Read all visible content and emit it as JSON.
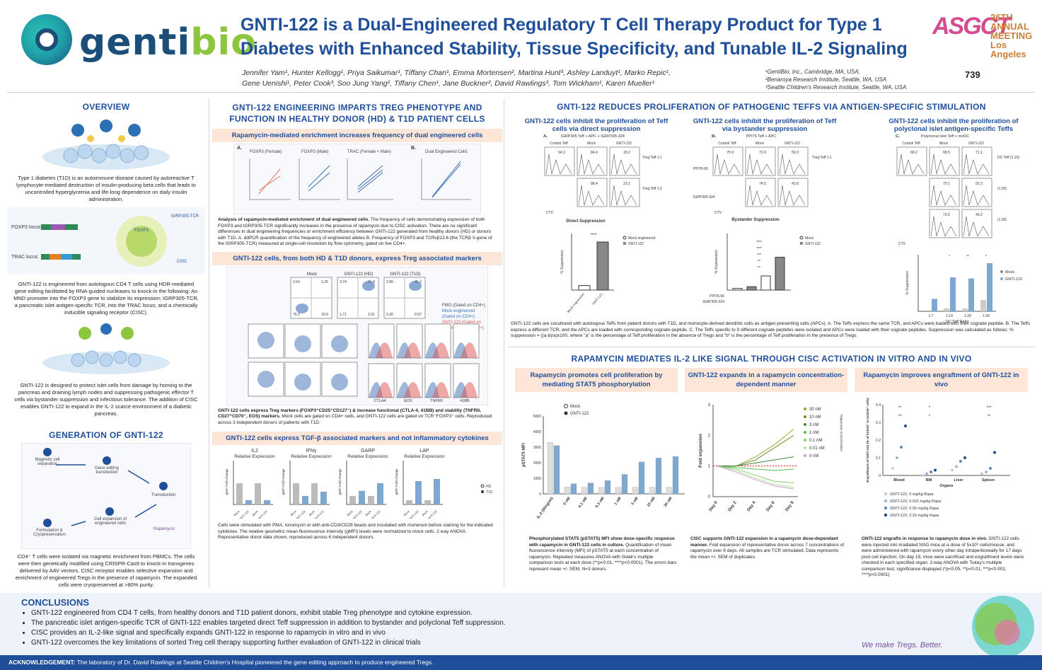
{
  "header": {
    "logo_text_g": "genti",
    "logo_text_b": "bio",
    "title_line1": "GNTI-122 is a Dual-Engineered Regulatory T Cell Therapy Product for Type 1",
    "title_line2": "Diabetes with Enhanced Stability, Tissue Specificity, and Tunable IL-2 Signaling",
    "authors_line1": "Jennifer Yam¹, Hunter Kellogg¹, Priya Saikumar¹, Tiffany Chan¹, Emma Mortensen², Martina Hunt³, Ashley Landuyt¹, Marko Repic¹,",
    "authors_line2": "Gene Uenishi¹, Peter Cook³, Soo Jung Yang², Tiffany Chen¹, Jane Buckner², David Rawlings³, Tom Wickham¹, Karen Mueller¹",
    "affil_1": "¹GentiBio, Inc., Cambridge, MA, USA,",
    "affil_2": "²Benaroya Research Institute, Seattle, WA, USA",
    "affil_3": "³Seattle Children's Research Institute, Seattle, WA, USA",
    "meeting_logo": "ASGCT",
    "meeting_text": "26TH ANNUAL MEETING Los Angeles",
    "poster_number": "739"
  },
  "overview": {
    "title": "OVERVIEW",
    "p1": "Type 1 diabetes (T1D) is an autoimmune disease caused by autoreactive T lymphocyte-mediated destruction of insulin-producing beta cells that leads to uncontrolled hyperglycemia and life-long dependence on daily insulin administration.",
    "p2": "GNTI-122 is engineered from autologous CD4 T cells using HDR-mediated gene editing facilitated by RNA-guided nucleases to knock-in the following: An MND promoter into the FOXP3 gene to stabilize its expression; IGRP305-TCR, a pancreatic islet antigen-specific TCR, into the TRAC locus; and a chemically inducible signaling receptor (CISC).",
    "p3": "GNTI-122 is designed to protect islet cells from damage by homing to the pancreas and draining lymph nodes and suppressing pathogenic effector T cells via bystander suppression and infectious tolerance. The addition of CISC enables GNTI-122 to expand in the IL-2 scarce environment of a diabetic pancreas.",
    "foxp3_locus": "FOXP3 locus",
    "trac_locus": "TRAC locus",
    "foxp3": "FOXP3",
    "igrp_tcr": "IGRP305-TCR",
    "cisc": "CISC"
  },
  "generation": {
    "title": "GENERATION OF GNTI-122",
    "steps": [
      "Magnetic cell separation",
      "Gene editing transfection",
      "Transduction",
      "Cell expansion of engineered cells",
      "Formulation & Cryopreservation"
    ],
    "rapamycin": "Rapamycin",
    "text": "CD4⁺ T cells were isolated via magnetic enrichment from PBMCs. The cells were then genetically modified using CRISPR-Cas9 to knock-in transgenes delivered by AAV vectors. CISC receptor enables selective expansion and enrichment of engineered Tregs in the presence of rapamycin. The expanded cells were cryopreserved at >80% purity."
  },
  "engineering": {
    "title_l1": "GNTI-122 ENGINEERING IMPARTS TREG PHENOTYPE AND",
    "title_l2": "FUNCTION IN HEALTHY DONOR (HD) & T1D PATIENT CELLS",
    "sub1": "Rapamycin-mediated enrichment increases frequency of dual engineered cells",
    "panelA": "A.",
    "panelB": "B.",
    "plot_titles": [
      "FOXP3 (Female)",
      "FOXP3 (Male)",
      "TRAC (Female + Male)",
      "Dual Engineered Cells"
    ],
    "cap1_bold": "Analysis of rapamycin-mediated enrichment of dual engineered cells.",
    "cap1": " The frequency of cells demonstrating expression of both FOXP3 and IGRP305-TCR significantly increases in the presence of rapamycin due to CISC activation. There are no significant differences in dual engineering frequencies or enrichment efficiency between GNTI-122 generated from healthy donors (HD) or donors with T1D. A. ddPCR quantification of the frequency of engineered alleles B. Frequency of FOXP3 and TCRvβ13.6 (the TCRβ V-gene of the IGRP305-TCR) measured at single-cell resolution by flow cytometry, gated on live CD4+.",
    "sub2": "GNTI-122 cells, from both HD & T1D donors, express Treg associated markers",
    "flow_labels": [
      "Mock",
      "GNTI-122 (HD)",
      "GNTI-122 (T1D)"
    ],
    "flow_q": [
      [
        "2.64",
        "1.25",
        "76.2",
        "19.9"
      ],
      [
        "3.74",
        "91.9",
        "1.71",
        "2.61"
      ],
      [
        "2.86",
        "95.2",
        "0.30",
        "0.97"
      ]
    ],
    "legend_flow": [
      "FMO (Gated on CD4+)",
      "Mock engineered (Gated on CD4+)",
      "GNTI-122 (Gated on TCRvb13.6+FOXP3+)"
    ],
    "markers": [
      "CTLA4",
      "EOS",
      "TNFRII",
      "41BB"
    ],
    "cap2_bold": "GNTI-122 cells express Treg markers (FOXP3⁺CD25⁺CD127⁻) & increase functional (CTLA-4, 41BB) and stability (TNFRII, CD27⁺CD70⁻, EOS) markers.",
    "cap2": " Mock cells are gated on CD4+ cells, and GNTI-122 cells are gated on TCR⁺FOXP3⁺ cells. Reproduced across 3 independent donors of patients with T1D.",
    "sub3": "GNTI-122 cells express TGF-β associated markers and not inflammatory cytokines",
    "cyto_titles": [
      "IL2",
      "IFNγ",
      "GARP",
      "LAP"
    ],
    "cyto_sub": "Relative Expression",
    "cyto_y": "gMFI Fold Change",
    "cyto_x": [
      "Mock",
      "GNTI-122",
      "Mock",
      "GNTI-122"
    ],
    "legend_hd": "HD",
    "legend_t1d": "T1D",
    "cap3": "Cells were stimulated with PMA, ionomycin or with anti-CD3/CD28 beads and incubated with monensin before staining for the indicated cytokines. The relative geometric mean fluorescence intensity (gMFI) levels were normalized to mock cells. 2-way ANOVA. Representative donor data shown, reproduced across 6 independent donors."
  },
  "teffs": {
    "title": "GNTI-122 REDUCES PROLIFERATION OF PATHOGENIC TEFFS VIA ANTIGEN-SPECIFIC STIMULATION",
    "sub1": "GNTI-122 cells inhibit the proliferation of Teff cells via direct suppression",
    "sub2": "GNTI-122 cells inhibit the proliferation of Teff via bystander suppression",
    "sub3": "GNTI-122 cells inhibit the proliferation of polyclonal islet antigen-specific Teffs",
    "pA": "A.",
    "pA_t": "IGRP305 Teff + APC + IGRP305-324",
    "pB": "B.",
    "pB_t": "PPI76 Teff + APC",
    "pC": "C.",
    "pC_t": "Polyclonal islet Teff + moDC",
    "cols": [
      "Control Teff",
      "Mock",
      "GNTI-122"
    ],
    "ratio1": "Treg:Teff 1:1",
    "ratio2": "Treg:Teff 1:2",
    "ratios_c": [
      "DC:Teff (1:10)",
      "(1:20)",
      "(1:30)"
    ],
    "ctv": "CTV",
    "direct_title": "Direct Suppression",
    "bystander_title": "Bystander Suppression",
    "y_supp": "% Suppression",
    "direct_x": [
      "Mock engineered",
      "GNTI-122"
    ],
    "legend_mock_eng": "Mock engineered",
    "legend_gnti": "GNTI-122",
    "legend_mock": "Mock",
    "sig4": "****",
    "sig2": "**",
    "sig3": "***",
    "sig1": "*",
    "ppi": "PPI76-90",
    "igrp": "IGRP305-324",
    "ratio_x_title": "DC:Teff Ratio",
    "ratio_x": [
      "1:7",
      "1:10",
      "1:20",
      "1:30"
    ],
    "flowA": [
      [
        "94.3",
        "84.6",
        "18.2"
      ],
      [
        "",
        "88.4",
        "23.1"
      ]
    ],
    "flowB": [
      [
        "75.9",
        "73.9",
        "59.3"
      ],
      [
        "",
        "74.5",
        "41.8"
      ]
    ],
    "flowC": [
      [
        "68.2",
        "68.5",
        "71.1"
      ],
      [
        "",
        "70.1",
        "52.3"
      ],
      [
        "",
        "73.6",
        "43.2"
      ]
    ],
    "caption": "GNTI-122 cells are cocultured with autologous Teffs from patient donors with T1D, and monocyte-derived dendritic cells as antigen-presenting cells (APCs). A. The Teffs express the same TCR, and APCs were loaded with their cognate peptide. B. The Teffs express a different TCR, and the APCs are loaded with corresponding cognate peptide. C. The Teffs specific to 9 different cognate peptides were isolated and APCs were loaded with their cognate peptides. Suppression was calculated as follows: % suppression = ((a-b)/a)x100, where \"a\" is the percentage of Teff proliferation in the absence of Tregs and \"b\" is the percentage of Teff proliferation in the presence of Tregs."
  },
  "rapa": {
    "title": "RAPAMYCIN MEDIATES IL-2 LIKE SIGNAL THROUGH CISC ACTIVATION IN VITRO AND IN VIVO",
    "sub1": "Rapamycin promotes cell proliferation by mediating STAT5 phosphorylation",
    "sub2": "GNTI-122 expands in a rapamycin concentration-dependent manner",
    "sub3": "Rapamycin improves engraftment of GNTI-122 in vivo",
    "stat_y": "pSTAT5 MFI",
    "stat_x": [
      "IL-2 (50ng/ml)",
      "0 nM",
      "0.1 nM",
      "0.3 nM",
      "1 nM",
      "3 nM",
      "10 nM",
      "30 nM"
    ],
    "fold_y": "Fold expansion",
    "fold_x": [
      "Day 0",
      "Day 2",
      "Day 4",
      "Day 6",
      "Day 8"
    ],
    "fold_legend": [
      "30 nM",
      "10 nM",
      "3 nM",
      "1 nM",
      "0.1 nM",
      "0.01 nM",
      "0 nM"
    ],
    "fold_side": "Rapamycin Concentration",
    "eng_y": "Engraftment of GNTI-122 (% of hCD45⁺ & mCD45⁺ cells)",
    "eng_x": [
      "Blood",
      "BM",
      "Liver",
      "Spleen"
    ],
    "eng_xtitle": "Organs",
    "eng_legend": [
      "GNTI-122, 0 mg/kg Rapa",
      "GNTI-122, 0.015 mg/kg Rapa",
      "GNTI-122, 0.05 mg/kg Rapa",
      "GNTI-122, 0.15 mg/kg Rapa"
    ],
    "cap1_bold": "Phosphorylated STAT5 (pSTAT5) MFI show dose-specific response with rapamycin in GNTI-122 cells in culture.",
    "cap1": " Quantification of mean fluorescence intensity (MFI) of pSTAT5 at each concentration of rapamycin. Repeated measures ANOVA with Sidak's multiple comparison tests at each dose (**p<0.01, ****p<0.0001). The errors bars represent mean +/- SEM, N=3 donors.",
    "cap2_bold": "CISC supports GNTI-122 expansion in a rapamycin dose-dependant manner.",
    "cap2": " Fold expansion of representative donor across 7 concentrations of rapamycin over 8 days. All samples are TCR stimulated. Data represents the mean +/- SEM of duplicates.",
    "cap3_bold": "GNTI-122 engrafts in response to rapamycin dose in vivo.",
    "cap3": " GNTI-122 cells were injected into irradiated NSG mice at a dose of 5x10⁶ cells/mouse, and were administered with rapamycin every other day intraperitoneally for 17 days post cell injection. On day 19, mice were sacrificed and engraftment levels were checked in each specified organ. 2-way ANOVA with Tukey's multiple comparison test, significance displayed (*p<0.05, **p<0.01, ***p<0.001, ****p<0.0001)"
  },
  "conclusions": {
    "title": "CONCLUSIONS",
    "items": [
      "GNTI-122 engineered from CD4 T cells, from healthy donors and T1D patient donors, exhibit stable Treg phenotype and cytokine expression.",
      "The pancreatic islet antigen-specific TCR of GNTI-122 enables targeted direct Teff suppression in addition to bystander and polyclonal Teff suppression.",
      "CISC provides an IL-2-like signal and specifically expands GNTI-122 in response to rapamycin in vitro and in vivo",
      "GNTI-122 overcomes the key limitations of sorted Treg cell therapy supporting further evaluation of GNTI-122 in clinical trials"
    ],
    "tagline": "We make Tregs. Better."
  },
  "ack": {
    "label": "ACKNOWLEDGEMENT:",
    "text": " The laboratory of Dr. David Rawlings at Seattle Children's Hospital pioneered the gene editing approach to produce engineered Tregs."
  },
  "chart_data": [
    {
      "type": "bar",
      "title": "Direct Suppression",
      "categories": [
        "Mock engineered",
        "GNTI-122"
      ],
      "values": [
        8,
        85
      ],
      "ylabel": "% Suppression",
      "ylim": [
        0,
        100
      ]
    },
    {
      "type": "bar",
      "title": "Bystander Suppression",
      "categories": [
        "Mock",
        "GNTI-122",
        "Mock",
        "GNTI-122"
      ],
      "values": [
        3,
        6,
        25,
        58
      ],
      "ylabel": "% Suppression",
      "ylim": [
        0,
        100
      ]
    },
    {
      "type": "bar",
      "categories": [
        "1:7",
        "1:10",
        "1:20",
        "1:30"
      ],
      "series": [
        {
          "name": "Mock",
          "values": [
            0,
            5,
            5,
            20
          ]
        },
        {
          "name": "GNTI-122",
          "values": [
            22,
            60,
            58,
            85
          ]
        }
      ],
      "xlabel": "DC:Teff Ratio",
      "ylabel": "% Suppression",
      "ylim": [
        0,
        100
      ]
    },
    {
      "type": "bar",
      "categories": [
        "IL-2 (50ng/ml)",
        "0 nM",
        "0.1 nM",
        "0.3 nM",
        "1 nM",
        "3 nM",
        "10 nM",
        "30 nM"
      ],
      "series": [
        {
          "name": "Mock",
          "values": [
            3300,
            450,
            420,
            420,
            420,
            430,
            430,
            420
          ]
        },
        {
          "name": "GNTI-122",
          "values": [
            3100,
            650,
            700,
            850,
            1250,
            2050,
            2300,
            2400
          ]
        }
      ],
      "ylabel": "pSTAT5 MFI",
      "ylim": [
        0,
        5000
      ]
    },
    {
      "type": "line",
      "categories": [
        "Day 0",
        "Day 2",
        "Day 4",
        "Day 6",
        "Day 8"
      ],
      "series": [
        {
          "name": "30 nM",
          "values": [
            1,
            1,
            1.3,
            1.7,
            2.2
          ]
        },
        {
          "name": "10 nM",
          "values": [
            1,
            1,
            1.2,
            1.6,
            2.0
          ]
        },
        {
          "name": "3 nM",
          "values": [
            1,
            1,
            1.1,
            1.2,
            1.3
          ]
        },
        {
          "name": "1 nM",
          "values": [
            1,
            0.95,
            0.9,
            0.85,
            0.9
          ]
        },
        {
          "name": "0.1 nM",
          "values": [
            1,
            0.9,
            0.7,
            0.5,
            0.45
          ]
        },
        {
          "name": "0.01 nM",
          "values": [
            1,
            0.85,
            0.6,
            0.4,
            0.3
          ]
        },
        {
          "name": "0 nM",
          "values": [
            1,
            0.8,
            0.55,
            0.35,
            0.25
          ]
        }
      ],
      "ylabel": "Fold expansion",
      "ylim": [
        0,
        3
      ]
    },
    {
      "type": "scatter",
      "categories": [
        "Blood",
        "BM",
        "Liver",
        "Spleen"
      ],
      "series": [
        {
          "name": "GNTI-122, 0 mg/kg Rapa",
          "values": [
            0.04,
            0.0,
            0.03,
            0.01
          ]
        },
        {
          "name": "GNTI-122, 0.015 mg/kg Rapa",
          "values": [
            0.1,
            0.01,
            0.05,
            0.02
          ]
        },
        {
          "name": "GNTI-122, 0.05 mg/kg Rapa",
          "values": [
            0.16,
            0.02,
            0.08,
            0.04
          ]
        },
        {
          "name": "GNTI-122, 0.15 mg/kg Rapa",
          "values": [
            0.28,
            0.03,
            0.1,
            0.13
          ]
        }
      ],
      "xlabel": "Organs",
      "ylim": [
        0,
        0.4
      ]
    }
  ]
}
